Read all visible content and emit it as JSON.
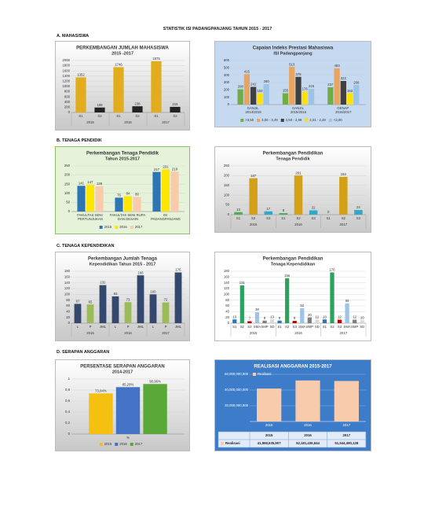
{
  "title": "STATISTIK ISI PADANGPANJANG TAHUN 2015 - 2017",
  "sections": [
    "A. MAHASISWA",
    "B. TENAGA PENDIDIK",
    "C. TENAGA KEPENDIDIKAN",
    "D. SERAPAN ANGGARAN"
  ],
  "chart_data": [
    {
      "type": "bar",
      "title": "PERKEMBANGAN JUMLAH MAHASISWA",
      "subtitle": "2015 -2017",
      "categories": [
        "S1",
        "S2",
        "S1",
        "S2",
        "S1",
        "S2"
      ],
      "groups": [
        "2015",
        "2016",
        "2017"
      ],
      "values": [
        1352,
        189,
        1746,
        238,
        1975,
        215
      ],
      "colors": [
        "#e3ac1c",
        "#222222"
      ],
      "ylim": [
        0,
        2000
      ],
      "yticks": [
        0,
        200,
        400,
        600,
        800,
        1000,
        1200,
        1400,
        1600,
        1800,
        2000
      ],
      "grid": true
    },
    {
      "type": "bar",
      "title": "Capaian Indeks Prestasi Mahasiswa",
      "subtitle": "ISI Padangpanjang",
      "categories": [
        "GANJIL 2014/2015",
        "GANJIL 2015/2016",
        "GENAP 2016/2017"
      ],
      "series": [
        {
          "name": ">3,50",
          "color": "#70ad47",
          "values": [
            208,
            155,
            237
          ]
        },
        {
          "name": "3,00 - 3,49",
          "color": "#e9a55f",
          "values": [
            415,
            513,
            493
          ]
        },
        {
          "name": "2,50 - 2,89",
          "color": "#404040",
          "values": [
            241,
            378,
            322
          ]
        },
        {
          "name": "2,01 - 2,49",
          "color": "#ffe200",
          "values": [
            153,
            176,
            153
          ]
        },
        {
          "name": "<2,00",
          "color": "#9dc3e6",
          "values": [
            280,
            215,
            266
          ]
        }
      ],
      "ylim": [
        0,
        600
      ],
      "yticks": [
        0,
        100,
        200,
        300,
        400,
        500,
        600
      ],
      "grid": true,
      "legend": "bottom"
    },
    {
      "type": "bar",
      "title": "Perkembangan Tenaga Pendidik",
      "subtitle": "Tahun 2015-2017",
      "categories": [
        "FAKULTAS SENI PERTUNJUKAN",
        "FAKULTAS SENI RUPA DAN DESAIN",
        "ISI PADANGPANJANG"
      ],
      "series": [
        {
          "name": "2015",
          "color": "#2e75b6",
          "values": [
            141,
            76,
            217
          ]
        },
        {
          "name": "2016",
          "color": "#ffe600",
          "values": [
            147,
            84,
            231
          ]
        },
        {
          "name": "2017",
          "color": "#f8cbad",
          "values": [
            139,
            80,
            219
          ]
        }
      ],
      "ylim": [
        0,
        250
      ],
      "yticks": [
        0,
        50,
        100,
        150,
        200,
        250
      ],
      "grid": true,
      "legend": "bottom"
    },
    {
      "type": "bar",
      "title": "Perkembangan Pendidikan",
      "subtitle": "Tenaga Pendidik",
      "categories": [
        "S1",
        "S2",
        "S3",
        "S1",
        "S2",
        "S3",
        "S1",
        "S2",
        "S3"
      ],
      "groups": [
        "2015",
        "2016",
        "2017"
      ],
      "values": [
        13,
        187,
        17,
        8,
        201,
        22,
        0,
        194,
        24
      ],
      "colors": [
        "#4caf50",
        "#d4a017",
        "#31a8c8"
      ],
      "ylim": [
        0,
        250
      ],
      "yticks": [
        0,
        50,
        100,
        150,
        200,
        250
      ],
      "grid": true
    },
    {
      "type": "bar",
      "title": "Perkembangan Jumlah Tenaga",
      "subtitle": "Kependidikan Tahun 2015 - 2017",
      "categories": [
        "L",
        "P",
        "JML",
        "L",
        "P",
        "JML",
        "L",
        "P",
        "JML"
      ],
      "groups": [
        "2015",
        "2016",
        "2017"
      ],
      "values": [
        67,
        65,
        132,
        93,
        73,
        166,
        100,
        72,
        176
      ],
      "colors": [
        "#34476e",
        "#9bbb59",
        "#34476e"
      ],
      "ylim": [
        0,
        180
      ],
      "yticks": [
        0,
        20,
        40,
        60,
        80,
        100,
        120,
        140,
        160,
        180
      ],
      "grid": true
    },
    {
      "type": "bar",
      "title": "Perkembangan Pendidikan",
      "subtitle": "Tenaga Kependidikan",
      "categories": [
        "S1",
        "S2",
        "S3",
        "SMA",
        "SMP",
        "SD",
        "S1",
        "S2",
        "S3",
        "SMA",
        "SMP",
        "SD",
        "S1",
        "S2",
        "S3",
        "SMA",
        "SMP",
        "SD"
      ],
      "groups": [
        "2015",
        "2016",
        "2017"
      ],
      "values": [
        13,
        131,
        7,
        38,
        9,
        13,
        9,
        156,
        8,
        52,
        20,
        12,
        13,
        176,
        12,
        69,
        12,
        10
      ],
      "colors": [
        "#2e75b6",
        "#2ca25f",
        "#c00000",
        "#9dc3e6",
        "#7f7f7f",
        "#d9d9d9"
      ],
      "ylim": [
        0,
        180
      ],
      "yticks": [
        0,
        20,
        40,
        60,
        80,
        100,
        120,
        140,
        160,
        180
      ],
      "grid": true
    },
    {
      "type": "bar",
      "title": "PERSENTASE SERAPAN ANGGARAN",
      "subtitle": "2014-2017",
      "categories": [
        null
      ],
      "xlabel": "%",
      "series": [
        {
          "name": "2015",
          "color": "#f5c010",
          "values": [
            0.7384
          ],
          "value_labels": [
            "73,84%"
          ]
        },
        {
          "name": "2016",
          "color": "#4472c4",
          "values": [
            0.8528
          ],
          "value_labels": [
            "85,28%"
          ]
        },
        {
          "name": "2017",
          "color": "#5aa83a",
          "values": [
            0.9096
          ],
          "value_labels": [
            "90,96%"
          ]
        }
      ],
      "ylim": [
        0,
        1
      ],
      "yticks": [
        0,
        {
          "value": 0.2,
          "label": "0,2"
        },
        {
          "value": 0.4,
          "label": "0,4"
        },
        {
          "value": 0.6,
          "label": "0,6"
        },
        {
          "value": 0.8,
          "label": "0,8"
        },
        1
      ],
      "grid": true,
      "legend": "bottom"
    },
    {
      "type": "bar",
      "title": "REALISASI ANGGARAN 2015-2017",
      "categories": [
        "2015",
        "2016",
        "2017"
      ],
      "series": [
        {
          "name": "Realisasi",
          "color": "#f8cbad",
          "values": [
            41868635907,
            52181435644,
            51544490128
          ],
          "value_labels": [
            "41,868,635,907",
            "52,181,435,644",
            "51,544,490,128"
          ]
        }
      ],
      "ylim": [
        0,
        60000000000
      ],
      "yticks": [
        {
          "value": 20000000000,
          "label": "20,000,000,000"
        },
        {
          "value": 40000000000,
          "label": "40,000,000,000"
        },
        {
          "value": 60000000000,
          "label": "60,000,000,000"
        }
      ],
      "grid": true,
      "legend": "top-left",
      "data_table": true,
      "text_color": "#ffffff"
    }
  ]
}
